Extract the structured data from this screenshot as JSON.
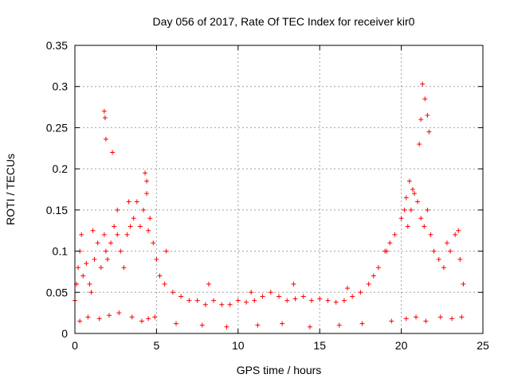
{
  "chart_data": {
    "type": "scatter",
    "title": "Day 056 of 2017, Rate Of TEC Index for receiver kir0",
    "xlabel": "GPS time / hours",
    "ylabel": "ROTI / TECUs",
    "xlim": [
      0,
      25
    ],
    "ylim": [
      0,
      0.35
    ],
    "x_ticks": [
      "0",
      "5",
      "10",
      "15",
      "20",
      "25"
    ],
    "y_ticks": [
      "0",
      "0.05",
      "0.1",
      "0.15",
      "0.2",
      "0.25",
      "0.3",
      "0.35"
    ],
    "grid": true,
    "marker": "+",
    "colors": {
      "points": "#ff0000",
      "grid": "#a0a0a0",
      "axis": "#000000"
    },
    "series": [
      {
        "x": [
          0.0,
          0.1,
          0.2,
          0.3,
          0.5,
          0.7,
          0.9,
          1.0,
          1.2,
          1.4,
          1.6,
          1.8,
          1.9,
          2.0,
          2.2,
          2.4,
          2.6,
          2.8,
          3.0,
          3.2,
          3.4,
          3.6,
          3.8,
          4.0,
          4.2,
          4.4,
          4.6,
          4.8,
          5.0,
          5.2,
          5.5,
          6.0,
          6.5,
          7.0,
          7.5,
          8.0,
          8.5,
          9.0,
          9.5,
          10.0,
          10.5,
          11.0,
          11.5,
          12.0,
          12.5,
          13.0,
          13.5,
          14.0,
          14.5,
          15.0,
          15.5,
          16.0,
          16.5,
          17.0,
          17.5,
          18.0,
          18.3,
          18.6,
          19.0,
          19.3,
          19.6,
          20.0,
          20.2,
          20.4,
          20.6,
          20.8,
          21.0,
          21.2,
          21.4,
          21.6,
          21.8,
          22.0,
          22.3,
          22.6,
          23.0,
          23.3,
          23.6,
          23.8,
          0.3,
          0.8,
          1.5,
          2.1,
          2.7,
          3.5,
          4.1,
          4.5,
          4.9,
          6.2,
          7.8,
          9.3,
          11.2,
          12.7,
          14.4,
          16.2,
          17.6,
          19.4,
          20.3,
          20.9,
          21.5,
          22.4,
          23.1,
          23.7,
          1.8,
          1.85,
          1.9,
          2.3,
          4.3,
          4.4,
          4.5,
          20.5,
          20.7,
          21.1,
          21.3,
          21.45,
          21.6,
          21.7,
          21.2,
          20.3,
          0.4,
          1.1,
          2.6,
          3.3,
          5.6,
          8.2,
          10.8,
          13.4,
          16.7,
          19.1,
          22.8,
          23.5
        ],
        "y": [
          0.04,
          0.06,
          0.08,
          0.1,
          0.07,
          0.085,
          0.06,
          0.05,
          0.09,
          0.11,
          0.08,
          0.12,
          0.1,
          0.09,
          0.11,
          0.13,
          0.12,
          0.1,
          0.08,
          0.12,
          0.13,
          0.14,
          0.16,
          0.13,
          0.15,
          0.17,
          0.14,
          0.11,
          0.09,
          0.07,
          0.06,
          0.05,
          0.045,
          0.04,
          0.04,
          0.035,
          0.04,
          0.035,
          0.035,
          0.04,
          0.038,
          0.04,
          0.045,
          0.05,
          0.045,
          0.04,
          0.042,
          0.045,
          0.04,
          0.042,
          0.04,
          0.038,
          0.04,
          0.045,
          0.05,
          0.06,
          0.07,
          0.08,
          0.1,
          0.11,
          0.12,
          0.14,
          0.15,
          0.13,
          0.15,
          0.17,
          0.16,
          0.14,
          0.13,
          0.15,
          0.12,
          0.1,
          0.09,
          0.08,
          0.1,
          0.12,
          0.09,
          0.06,
          0.015,
          0.02,
          0.018,
          0.022,
          0.025,
          0.02,
          0.015,
          0.018,
          0.02,
          0.012,
          0.01,
          0.008,
          0.01,
          0.012,
          0.008,
          0.01,
          0.012,
          0.015,
          0.018,
          0.02,
          0.015,
          0.02,
          0.018,
          0.02,
          0.27,
          0.262,
          0.236,
          0.22,
          0.195,
          0.185,
          0.125,
          0.185,
          0.175,
          0.23,
          0.303,
          0.285,
          0.265,
          0.245,
          0.26,
          0.165,
          0.12,
          0.125,
          0.15,
          0.16,
          0.1,
          0.06,
          0.05,
          0.06,
          0.055,
          0.1,
          0.11,
          0.125
        ]
      }
    ]
  }
}
